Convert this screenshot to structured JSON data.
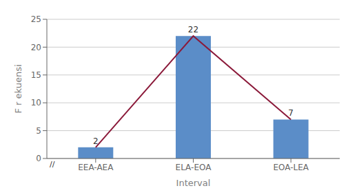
{
  "chart_data": {
    "type": "bar",
    "categories": [
      "EEA-AEA",
      "ELA-EOA",
      "EOA-LEA"
    ],
    "series": [
      {
        "type": "bar",
        "color": "#5B8DC8",
        "values": [
          2,
          22,
          7
        ]
      },
      {
        "type": "line",
        "color": "#8B1A3A",
        "values": [
          2,
          22,
          7
        ]
      }
    ],
    "xlabel": "Interval",
    "ylabel": "F r ekuensi",
    "ylim": [
      0,
      25
    ],
    "yticks": [
      0,
      5,
      10,
      15,
      20,
      25
    ],
    "grid": true,
    "data_labels": true,
    "annotations": [
      "//"
    ]
  }
}
